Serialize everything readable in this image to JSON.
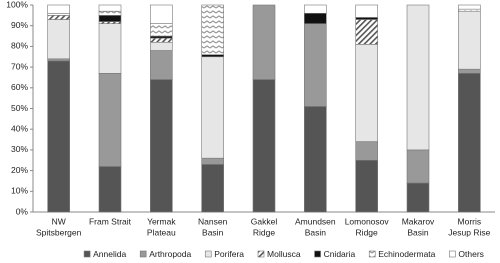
{
  "chart_data": {
    "type": "stacked_bar",
    "categories": [
      [
        "NW",
        "Spitsbergen"
      ],
      [
        "Fram Strait"
      ],
      [
        "Yermak",
        "Plateau"
      ],
      [
        "Nansen",
        "Basin"
      ],
      [
        "Gakkel",
        "Ridge"
      ],
      [
        "Amundsen",
        "Basin"
      ],
      [
        "Lomonosov",
        "Ridge"
      ],
      [
        "Makarov",
        "Basin"
      ],
      [
        "Morris",
        "Jesup Rise"
      ]
    ],
    "series": [
      {
        "name": "Annelida",
        "color": "#555555",
        "values": [
          73,
          22,
          64,
          23,
          64,
          51,
          25,
          14,
          67
        ]
      },
      {
        "name": "Arthropoda",
        "color": "#999999",
        "values": [
          1,
          45,
          14,
          3,
          36,
          40,
          9,
          16,
          2
        ]
      },
      {
        "name": "Porifera",
        "color": "#e6e6e6",
        "values": [
          19,
          24,
          4,
          49,
          0,
          0,
          47,
          70,
          28
        ]
      },
      {
        "name": "Mollusca",
        "color": "#ffffff",
        "pattern": "diagonal",
        "values": [
          2,
          1,
          2,
          0,
          0,
          0,
          12,
          0,
          0
        ]
      },
      {
        "name": "Cnidaria",
        "color": "#111111",
        "values": [
          0,
          3,
          1,
          1,
          0,
          5,
          1,
          0,
          0
        ]
      },
      {
        "name": "Echinodermata",
        "color": "#ffffff",
        "pattern": "zigzag",
        "values": [
          1,
          2,
          6,
          24,
          0,
          0,
          0,
          0,
          1
        ]
      },
      {
        "name": "Others",
        "color": "#ffffff",
        "values": [
          4,
          3,
          9,
          0,
          0,
          4,
          6,
          0,
          2
        ]
      }
    ],
    "ylim": [
      0,
      100
    ],
    "yticks": [
      {
        "value": 0,
        "label": "0%"
      },
      {
        "value": 10,
        "label": "10%"
      },
      {
        "value": 20,
        "label": "20%"
      },
      {
        "value": 30,
        "label": "30%"
      },
      {
        "value": 40,
        "label": "40%"
      },
      {
        "value": 50,
        "label": "50%"
      },
      {
        "value": 60,
        "label": "60%"
      },
      {
        "value": 70,
        "label": "70%"
      },
      {
        "value": 80,
        "label": "80%"
      },
      {
        "value": 90,
        "label": "90%"
      },
      {
        "value": 100,
        "label": "100%"
      }
    ],
    "legend": "bottom"
  }
}
